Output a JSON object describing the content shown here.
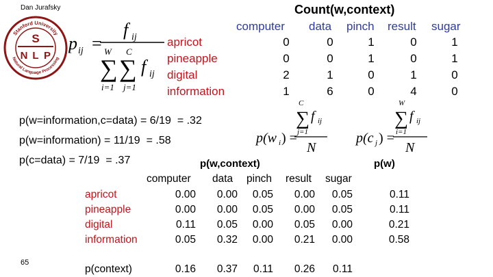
{
  "header": {
    "author": "Dan Jurafsky"
  },
  "logo": {
    "ring_top": "Stanford University",
    "ring_bottom": "Natural Language Processing",
    "letters": [
      "S",
      "N",
      "L",
      "P"
    ]
  },
  "formula_main": {
    "lhs": "p",
    "lhs_sub": "ij",
    "equals": "=",
    "num": "f",
    "num_sub": "ij",
    "den_sum1_top": "W",
    "den_sum2_top": "C",
    "den_sum1_bottom": "i=1",
    "den_sum2_bottom": "j=1",
    "den_f": "f",
    "den_f_sub": "ij"
  },
  "count_table": {
    "title": "Count(w,context)",
    "columns": [
      "computer",
      "data",
      "pinch",
      "result",
      "sugar"
    ],
    "rows": [
      {
        "label": "apricot",
        "values": [
          "0",
          "0",
          "1",
          "0",
          "1"
        ]
      },
      {
        "label": "pineapple",
        "values": [
          "0",
          "0",
          "1",
          "0",
          "1"
        ]
      },
      {
        "label": "digital",
        "values": [
          "2",
          "1",
          "0",
          "1",
          "0"
        ]
      },
      {
        "label": "information",
        "values": [
          "1",
          "6",
          "0",
          "4",
          "0"
        ]
      }
    ]
  },
  "equations": [
    {
      "text": "p(w=information,c=data) =",
      "frac": "6/19",
      "result": "= .32"
    },
    {
      "text": "p(w=information) =",
      "frac": "11/19",
      "result": "= .58"
    },
    {
      "text": "p(c=data) =",
      "frac": "7/19",
      "result": "= .37"
    }
  ],
  "formula_pw": {
    "lhs": "p(w",
    "lhs_sub": "i",
    "lhs_end": ") =",
    "sum_top": "C",
    "sum_bottom": "j=1",
    "f": "f",
    "f_sub": "ij",
    "den": "N"
  },
  "formula_pc": {
    "lhs": "p(c",
    "lhs_sub": "j",
    "lhs_end": ") =",
    "sum_top": "W",
    "sum_bottom": "i=1",
    "f": "f",
    "f_sub": "ij",
    "den": "N"
  },
  "prob_table": {
    "title": "p(w,context)",
    "pw_title": "p(w)",
    "columns": [
      "computer",
      "data",
      "pinch",
      "result",
      "sugar"
    ],
    "rows": [
      {
        "label": "apricot",
        "values": [
          "0.00",
          "0.00",
          "0.05",
          "0.00",
          "0.05"
        ],
        "pw": "0.11"
      },
      {
        "label": "pineapple",
        "values": [
          "0.00",
          "0.00",
          "0.05",
          "0.00",
          "0.05"
        ],
        "pw": "0.11"
      },
      {
        "label": "digital",
        "values": [
          "0.11",
          "0.05",
          "0.00",
          "0.05",
          "0.00"
        ],
        "pw": "0.21"
      },
      {
        "label": "information",
        "values": [
          "0.05",
          "0.32",
          "0.00",
          "0.21",
          "0.00"
        ],
        "pw": "0.58"
      }
    ],
    "context_label": "p(context)",
    "context_values": [
      "0.16",
      "0.37",
      "0.11",
      "0.26",
      "0.11"
    ]
  },
  "footer": {
    "slide_number": "65"
  }
}
